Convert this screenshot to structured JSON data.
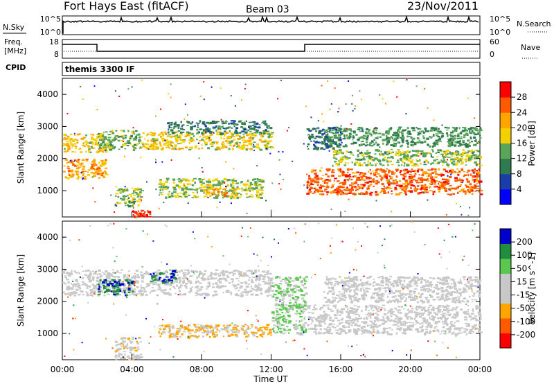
{
  "header": {
    "title": "Fort Hays East (fitACF)",
    "beam": "Beam 03",
    "date": "23/Nov/2011"
  },
  "noise_panel": {
    "left_label": "N.Sky",
    "right_label": "N.Search",
    "left_ticks": [
      "10^5",
      "10^0"
    ],
    "right_ticks": [
      "10^5",
      "10^0"
    ]
  },
  "freq_panel": {
    "left_label_1": "Freq.",
    "left_label_2": "[MHz]",
    "right_label": "Nave",
    "left_ticks": [
      "18",
      "8"
    ],
    "right_ticks": [
      "60",
      "0"
    ]
  },
  "cpid": {
    "label": "CPID",
    "mode": "themis 3300 IF"
  },
  "x_axis": {
    "label": "Time UT",
    "ticks": [
      "00:00",
      "04:00",
      "08:00",
      "12:00",
      "16:00",
      "20:00",
      "00:00"
    ]
  },
  "colors": {
    "power_scale": [
      "#0000ff",
      "#1a3ea8",
      "#2f7b4f",
      "#5aa55a",
      "#f5d000",
      "#ffa500",
      "#ff5a00",
      "#ff0000"
    ],
    "velocity_scale": [
      "#ff0000",
      "#ff5a00",
      "#ffa500",
      "#c8c8c8",
      "#c8c8c8",
      "#5ac850",
      "#1f8f3f",
      "#0000cc"
    ]
  },
  "chart_data": [
    {
      "type": "heatmap",
      "title": "",
      "xlabel": "Time UT",
      "ylabel": "Slant Range [km]",
      "xlim": [
        0,
        24
      ],
      "ylim": [
        180,
        4500
      ],
      "y_ticks": [
        1000,
        2000,
        3000,
        4000
      ],
      "colorbar": {
        "label": "Power [dB]",
        "ticks": [
          4,
          8,
          12,
          16,
          20,
          24,
          28
        ],
        "range": [
          0,
          32
        ]
      },
      "regions": [
        {
          "t": [
            0,
            2.5
          ],
          "r": [
            1400,
            2000
          ],
          "level": 22
        },
        {
          "t": [
            0,
            2.5
          ],
          "r": [
            2200,
            2800
          ],
          "level": 19
        },
        {
          "t": [
            2,
            4.5
          ],
          "r": [
            2300,
            2900
          ],
          "level": 14
        },
        {
          "t": [
            4.5,
            12
          ],
          "r": [
            2300,
            2850
          ],
          "level": 18
        },
        {
          "t": [
            6,
            12
          ],
          "r": [
            2800,
            3200
          ],
          "level": 10
        },
        {
          "t": [
            3,
            4.5
          ],
          "r": [
            500,
            1100
          ],
          "level": 14
        },
        {
          "t": [
            5.5,
            11.5
          ],
          "r": [
            800,
            1400
          ],
          "level": 16
        },
        {
          "t": [
            8,
            10
          ],
          "r": [
            850,
            1100
          ],
          "level": 22
        },
        {
          "t": [
            4,
            5
          ],
          "r": [
            200,
            400
          ],
          "level": 29
        },
        {
          "t": [
            14,
            24
          ],
          "r": [
            900,
            1700
          ],
          "level": 26
        },
        {
          "t": [
            15.5,
            24
          ],
          "r": [
            1800,
            2300
          ],
          "level": 15
        },
        {
          "t": [
            15,
            24
          ],
          "r": [
            2400,
            3000
          ],
          "level": 12
        },
        {
          "t": [
            14,
            16
          ],
          "r": [
            2300,
            3000
          ],
          "level": 9
        }
      ]
    },
    {
      "type": "heatmap",
      "title": "",
      "xlabel": "Time UT",
      "ylabel": "Slant Range [km]",
      "xlim": [
        0,
        24
      ],
      "ylim": [
        180,
        4500
      ],
      "y_ticks": [
        1000,
        2000,
        3000,
        4000
      ],
      "colorbar": {
        "label": "Velocity [m s^-1]",
        "ticks": [
          -200,
          -100,
          -50,
          -15,
          15,
          50,
          100,
          200
        ],
        "range": [
          -250,
          250
        ]
      },
      "regions": [
        {
          "t": [
            0,
            12
          ],
          "r": [
            2200,
            3000
          ],
          "level": 0
        },
        {
          "t": [
            2,
            4
          ],
          "r": [
            2200,
            2700
          ],
          "level": 180
        },
        {
          "t": [
            5,
            6.5
          ],
          "r": [
            2600,
            3000
          ],
          "level": 180
        },
        {
          "t": [
            5.5,
            12
          ],
          "r": [
            900,
            1300
          ],
          "level": -70
        },
        {
          "t": [
            3,
            4.5
          ],
          "r": [
            200,
            900
          ],
          "level": -30
        },
        {
          "t": [
            12,
            14
          ],
          "r": [
            1000,
            2800
          ],
          "level": 60
        },
        {
          "t": [
            14,
            24
          ],
          "r": [
            1000,
            1900
          ],
          "level": 0
        },
        {
          "t": [
            15,
            24
          ],
          "r": [
            2000,
            2800
          ],
          "level": 5
        }
      ]
    }
  ]
}
